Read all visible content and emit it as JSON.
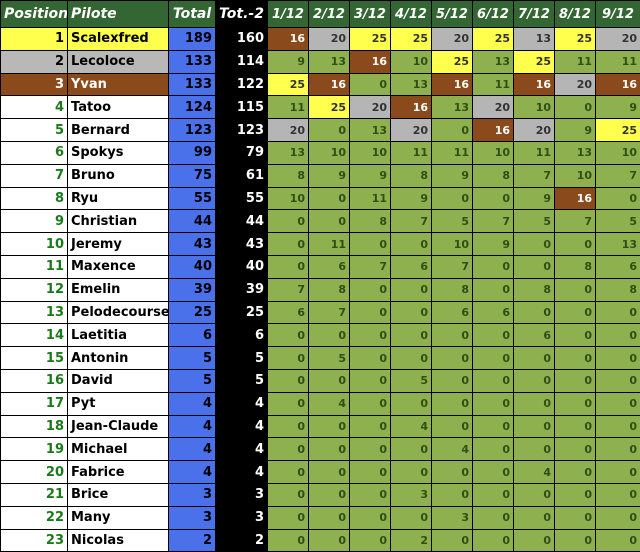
{
  "headers": {
    "position": "Position",
    "pilote": "Pilote",
    "total": "Total",
    "tot2": "Tot.-2",
    "races": [
      "1/12",
      "2/12",
      "3/12",
      "4/12",
      "5/12",
      "6/12",
      "7/12",
      "8/12",
      "9/12"
    ]
  },
  "rows": [
    {
      "pos": "1",
      "name": "Scalexfred",
      "total": "189",
      "tot2": "160",
      "scores": [
        "16",
        "20",
        "25",
        "25",
        "20",
        "25",
        "13",
        "25",
        "20"
      ],
      "cls": [
        "best",
        "second",
        "podium",
        "podium",
        "second",
        "podium",
        "second",
        "podium",
        "second"
      ],
      "medal": "gold"
    },
    {
      "pos": "2",
      "name": "Lecoloce",
      "total": "133",
      "tot2": "114",
      "scores": [
        "9",
        "13",
        "16",
        "10",
        "25",
        "13",
        "25",
        "11",
        "11"
      ],
      "cls": [
        "",
        "",
        "best",
        "",
        "podium",
        "",
        "podium",
        "",
        ""
      ],
      "medal": "silver"
    },
    {
      "pos": "3",
      "name": "Yvan",
      "total": "133",
      "tot2": "122",
      "scores": [
        "25",
        "16",
        "0",
        "13",
        "16",
        "11",
        "16",
        "20",
        "16"
      ],
      "cls": [
        "podium",
        "best",
        "",
        "",
        "best",
        "",
        "best",
        "second",
        "best"
      ],
      "medal": "bronze"
    },
    {
      "pos": "4",
      "name": "Tatoo",
      "total": "124",
      "tot2": "115",
      "scores": [
        "11",
        "25",
        "20",
        "16",
        "13",
        "20",
        "10",
        "0",
        "9"
      ],
      "cls": [
        "",
        "podium",
        "second",
        "best",
        "",
        "second",
        "",
        "",
        ""
      ],
      "medal": ""
    },
    {
      "pos": "5",
      "name": "Bernard",
      "total": "123",
      "tot2": "123",
      "scores": [
        "20",
        "0",
        "13",
        "20",
        "0",
        "16",
        "20",
        "9",
        "25"
      ],
      "cls": [
        "second",
        "",
        "",
        "second",
        "",
        "best",
        "second",
        "",
        "podium"
      ],
      "medal": ""
    },
    {
      "pos": "6",
      "name": "Spokys",
      "total": "99",
      "tot2": "79",
      "scores": [
        "13",
        "10",
        "10",
        "11",
        "11",
        "10",
        "11",
        "13",
        "10"
      ],
      "cls": [
        "",
        "",
        "",
        "",
        "",
        "",
        "",
        "",
        ""
      ],
      "medal": ""
    },
    {
      "pos": "7",
      "name": "Bruno",
      "total": "75",
      "tot2": "61",
      "scores": [
        "8",
        "9",
        "9",
        "8",
        "9",
        "8",
        "7",
        "10",
        "7"
      ],
      "cls": [
        "",
        "",
        "",
        "",
        "",
        "",
        "",
        "",
        ""
      ],
      "medal": ""
    },
    {
      "pos": "8",
      "name": "Ryu",
      "total": "55",
      "tot2": "55",
      "scores": [
        "10",
        "0",
        "11",
        "9",
        "0",
        "0",
        "9",
        "16",
        "0"
      ],
      "cls": [
        "",
        "",
        "",
        "",
        "",
        "",
        "",
        "best",
        ""
      ],
      "medal": ""
    },
    {
      "pos": "9",
      "name": "Christian",
      "total": "44",
      "tot2": "44",
      "scores": [
        "0",
        "0",
        "8",
        "7",
        "5",
        "7",
        "5",
        "7",
        "5"
      ],
      "cls": [
        "",
        "",
        "",
        "",
        "",
        "",
        "",
        "",
        ""
      ],
      "medal": ""
    },
    {
      "pos": "10",
      "name": "Jeremy",
      "total": "43",
      "tot2": "43",
      "scores": [
        "0",
        "11",
        "0",
        "0",
        "10",
        "9",
        "0",
        "0",
        "13"
      ],
      "cls": [
        "",
        "",
        "",
        "",
        "",
        "",
        "",
        "",
        ""
      ],
      "medal": ""
    },
    {
      "pos": "11",
      "name": "Maxence",
      "total": "40",
      "tot2": "40",
      "scores": [
        "0",
        "6",
        "7",
        "6",
        "7",
        "0",
        "0",
        "8",
        "6"
      ],
      "cls": [
        "",
        "",
        "",
        "",
        "",
        "",
        "",
        "",
        ""
      ],
      "medal": ""
    },
    {
      "pos": "12",
      "name": "Emelin",
      "total": "39",
      "tot2": "39",
      "scores": [
        "7",
        "8",
        "0",
        "0",
        "8",
        "0",
        "8",
        "0",
        "8"
      ],
      "cls": [
        "",
        "",
        "",
        "",
        "",
        "",
        "",
        "",
        ""
      ],
      "medal": ""
    },
    {
      "pos": "13",
      "name": "Pelodecourse",
      "total": "25",
      "tot2": "25",
      "scores": [
        "6",
        "7",
        "0",
        "0",
        "6",
        "6",
        "0",
        "0",
        "0"
      ],
      "cls": [
        "",
        "",
        "",
        "",
        "",
        "",
        "",
        "",
        ""
      ],
      "medal": ""
    },
    {
      "pos": "14",
      "name": "Laetitia",
      "total": "6",
      "tot2": "6",
      "scores": [
        "0",
        "0",
        "0",
        "0",
        "0",
        "0",
        "6",
        "0",
        "0"
      ],
      "cls": [
        "",
        "",
        "",
        "",
        "",
        "",
        "",
        "",
        ""
      ],
      "medal": ""
    },
    {
      "pos": "15",
      "name": "Antonin",
      "total": "5",
      "tot2": "5",
      "scores": [
        "0",
        "5",
        "0",
        "0",
        "0",
        "0",
        "0",
        "0",
        "0"
      ],
      "cls": [
        "",
        "",
        "",
        "",
        "",
        "",
        "",
        "",
        ""
      ],
      "medal": ""
    },
    {
      "pos": "16",
      "name": "David",
      "total": "5",
      "tot2": "5",
      "scores": [
        "0",
        "0",
        "0",
        "5",
        "0",
        "0",
        "0",
        "0",
        "0"
      ],
      "cls": [
        "",
        "",
        "",
        "",
        "",
        "",
        "",
        "",
        ""
      ],
      "medal": ""
    },
    {
      "pos": "17",
      "name": "Pyt",
      "total": "4",
      "tot2": "4",
      "scores": [
        "0",
        "4",
        "0",
        "0",
        "0",
        "0",
        "0",
        "0",
        "0"
      ],
      "cls": [
        "",
        "",
        "",
        "",
        "",
        "",
        "",
        "",
        ""
      ],
      "medal": ""
    },
    {
      "pos": "18",
      "name": "Jean-Claude",
      "total": "4",
      "tot2": "4",
      "scores": [
        "0",
        "0",
        "0",
        "4",
        "0",
        "0",
        "0",
        "0",
        "0"
      ],
      "cls": [
        "",
        "",
        "",
        "",
        "",
        "",
        "",
        "",
        ""
      ],
      "medal": ""
    },
    {
      "pos": "19",
      "name": "Michael",
      "total": "4",
      "tot2": "4",
      "scores": [
        "0",
        "0",
        "0",
        "0",
        "4",
        "0",
        "0",
        "0",
        "0"
      ],
      "cls": [
        "",
        "",
        "",
        "",
        "",
        "",
        "",
        "",
        ""
      ],
      "medal": ""
    },
    {
      "pos": "20",
      "name": "Fabrice",
      "total": "4",
      "tot2": "4",
      "scores": [
        "0",
        "0",
        "0",
        "0",
        "0",
        "0",
        "4",
        "0",
        "0"
      ],
      "cls": [
        "",
        "",
        "",
        "",
        "",
        "",
        "",
        "",
        ""
      ],
      "medal": ""
    },
    {
      "pos": "21",
      "name": "Brice",
      "total": "3",
      "tot2": "3",
      "scores": [
        "0",
        "0",
        "0",
        "3",
        "0",
        "0",
        "0",
        "0",
        "0"
      ],
      "cls": [
        "",
        "",
        "",
        "",
        "",
        "",
        "",
        "",
        ""
      ],
      "medal": ""
    },
    {
      "pos": "22",
      "name": "Many",
      "total": "3",
      "tot2": "3",
      "scores": [
        "0",
        "0",
        "0",
        "0",
        "3",
        "0",
        "0",
        "0",
        "0"
      ],
      "cls": [
        "",
        "",
        "",
        "",
        "",
        "",
        "",
        "",
        ""
      ],
      "medal": ""
    },
    {
      "pos": "23",
      "name": "Nicolas",
      "total": "2",
      "tot2": "2",
      "scores": [
        "0",
        "0",
        "0",
        "2",
        "0",
        "0",
        "0",
        "0",
        "0"
      ],
      "cls": [
        "",
        "",
        "",
        "",
        "",
        "",
        "",
        "",
        ""
      ],
      "medal": ""
    }
  ]
}
